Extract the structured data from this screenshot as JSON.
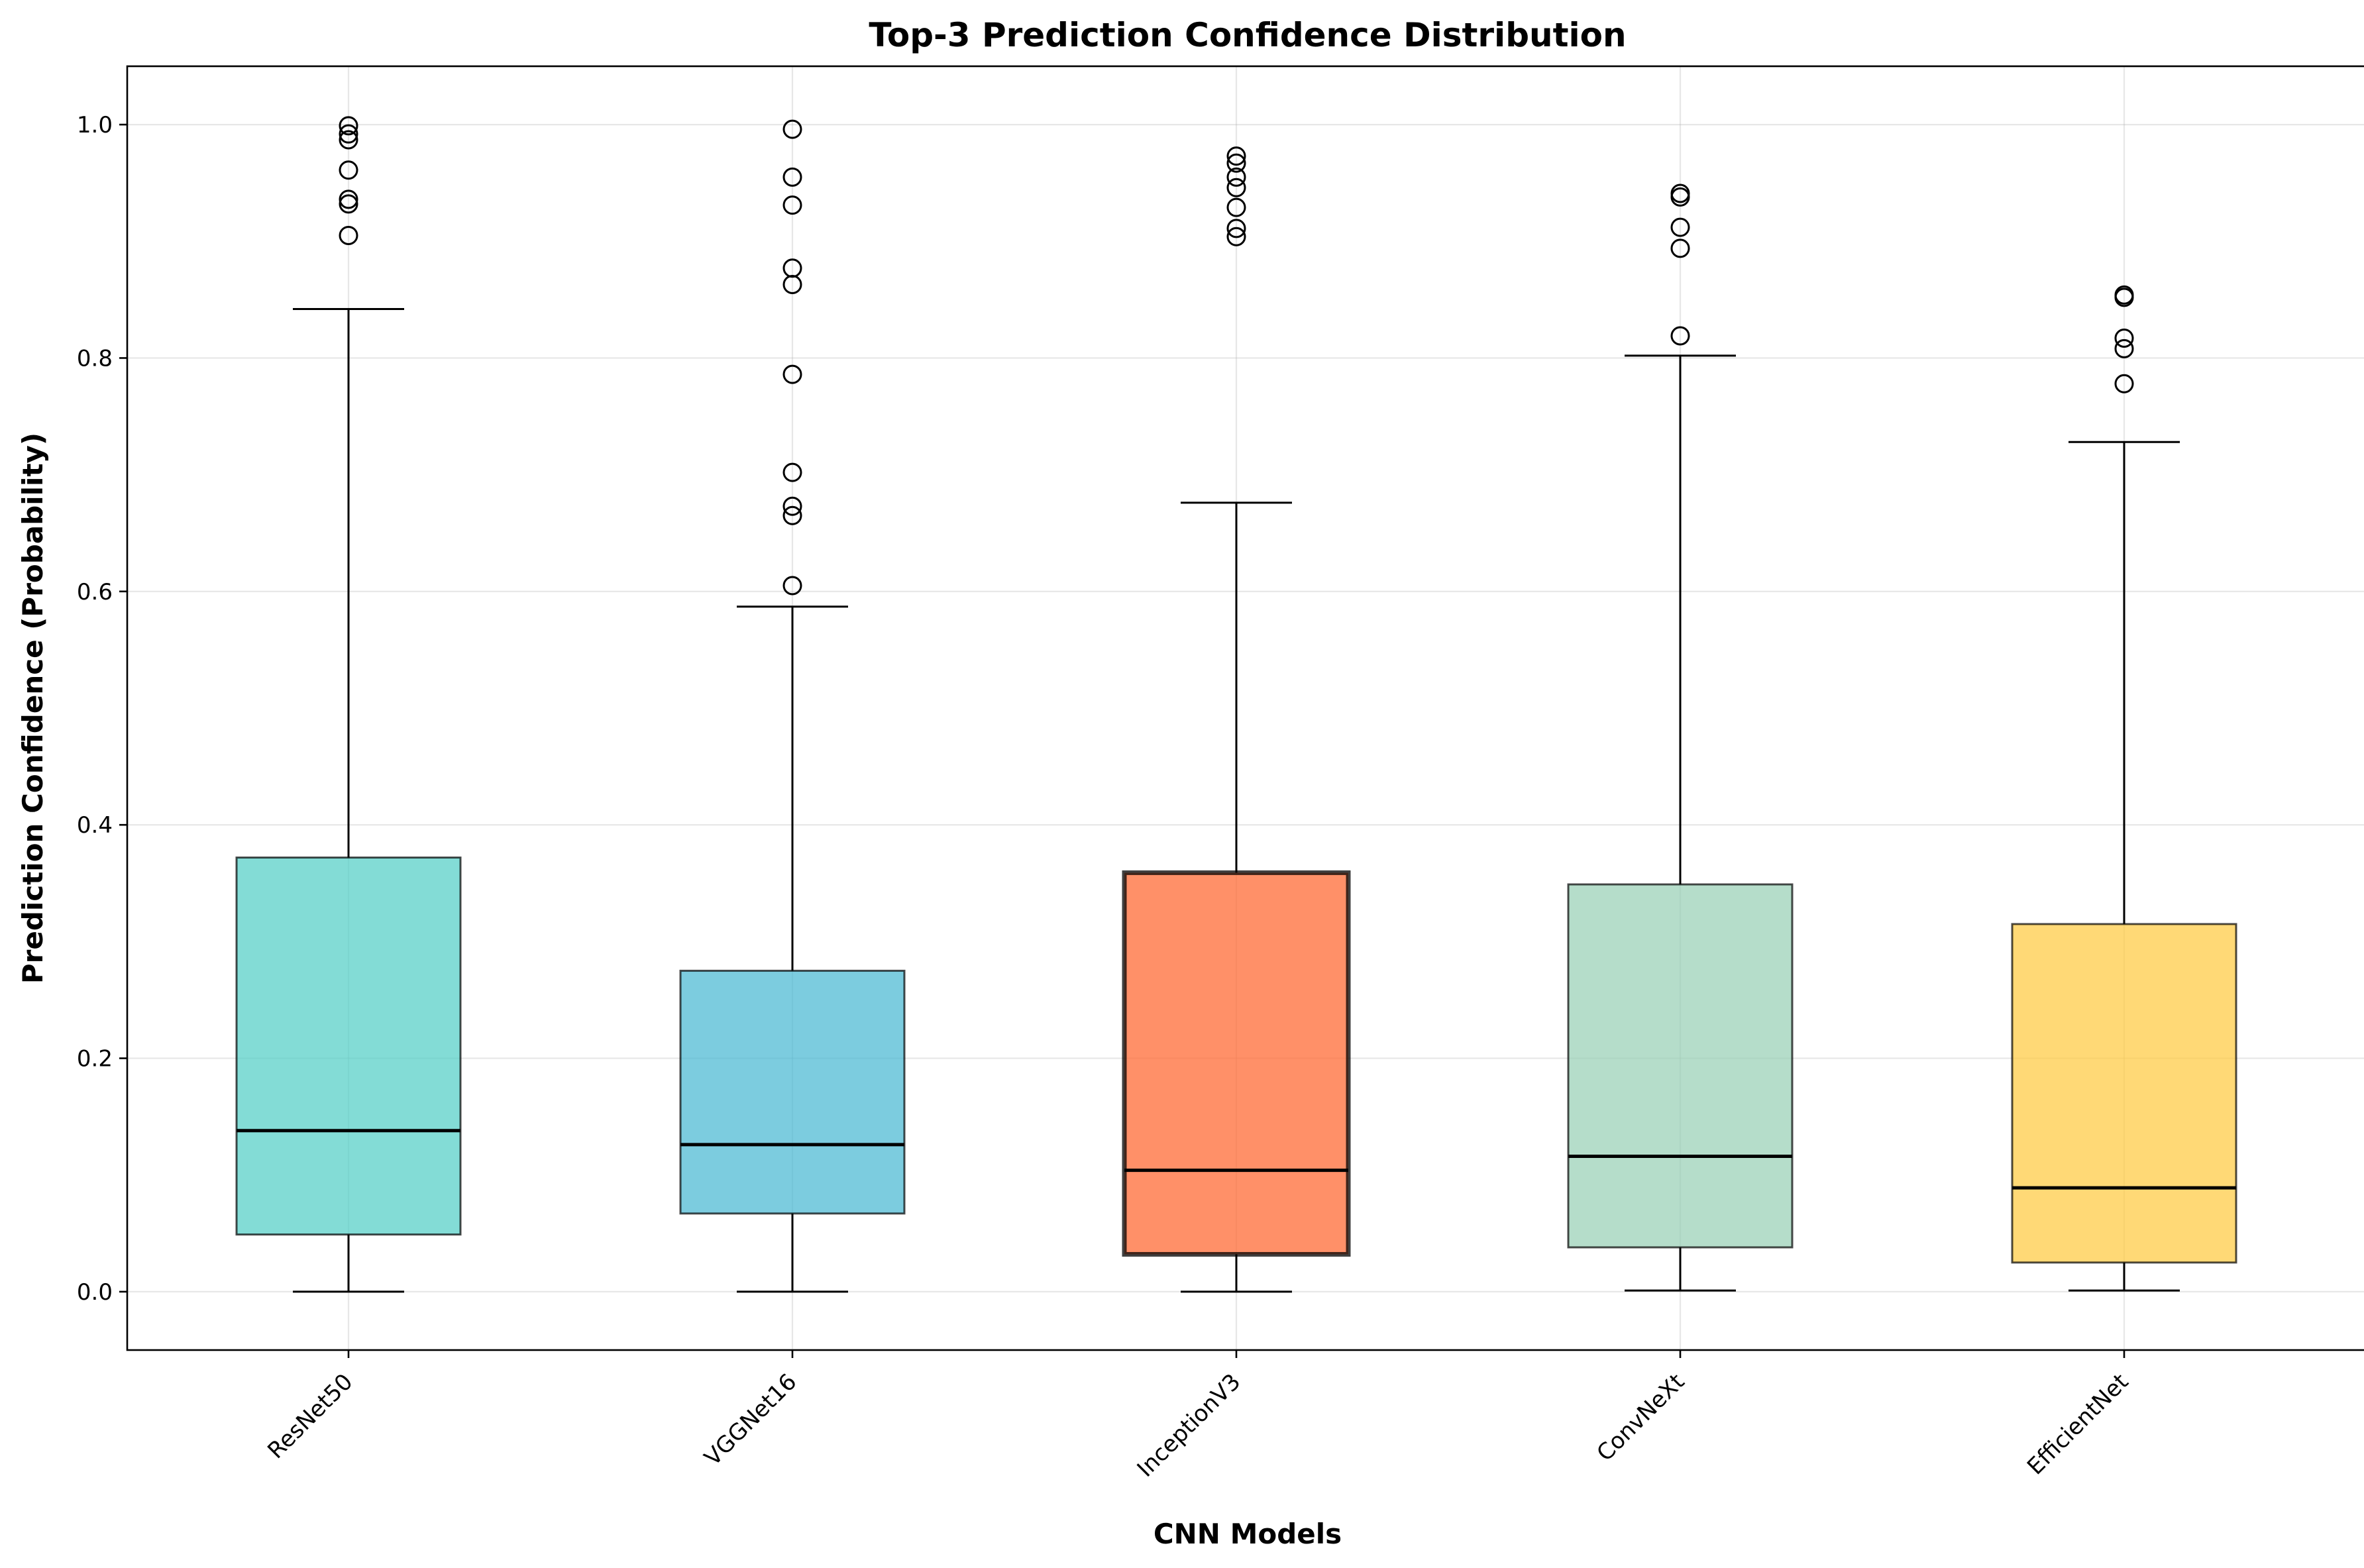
{
  "chart_data": {
    "type": "box",
    "title": "Top-3 Prediction Confidence Distribution",
    "xlabel": "CNN Models",
    "ylabel": "Prediction Confidence (Probability)",
    "ylim": [
      -0.05,
      1.05
    ],
    "yticks": [
      0.0,
      0.2,
      0.4,
      0.6,
      0.8,
      1.0
    ],
    "ytick_labels": [
      "0.0",
      "0.2",
      "0.4",
      "0.6",
      "0.8",
      "1.0"
    ],
    "grid": true,
    "series": [
      {
        "name": "ResNet50",
        "color": "#4ECDC4",
        "highlight": false,
        "whisker_low": 0.0,
        "q1": 0.049,
        "median": 0.138,
        "q3": 0.372,
        "whisker_high": 0.842,
        "outliers": [
          0.905,
          0.932,
          0.936,
          0.961,
          0.987,
          0.992,
          0.999
        ]
      },
      {
        "name": "VGGNet16",
        "color": "#45B7D1",
        "highlight": false,
        "whisker_low": 0.0,
        "q1": 0.067,
        "median": 0.126,
        "q3": 0.275,
        "whisker_high": 0.587,
        "outliers": [
          0.605,
          0.665,
          0.673,
          0.702,
          0.786,
          0.863,
          0.877,
          0.931,
          0.955,
          0.996
        ]
      },
      {
        "name": "InceptionV3",
        "color": "#FF6B35",
        "highlight": true,
        "whisker_low": 0.0,
        "q1": 0.032,
        "median": 0.104,
        "q3": 0.359,
        "whisker_high": 0.676,
        "outliers": [
          0.904,
          0.911,
          0.929,
          0.946,
          0.955,
          0.967,
          0.973
        ]
      },
      {
        "name": "ConvNeXt",
        "color": "#96CEB4",
        "highlight": false,
        "whisker_low": 0.001,
        "q1": 0.038,
        "median": 0.116,
        "q3": 0.349,
        "whisker_high": 0.802,
        "outliers": [
          0.819,
          0.894,
          0.912,
          0.938,
          0.941
        ]
      },
      {
        "name": "EfficientNet",
        "color": "#FFC93C",
        "highlight": false,
        "whisker_low": 0.001,
        "q1": 0.025,
        "median": 0.089,
        "q3": 0.315,
        "whisker_high": 0.728,
        "outliers": [
          0.778,
          0.808,
          0.817,
          0.852,
          0.854
        ]
      }
    ]
  }
}
